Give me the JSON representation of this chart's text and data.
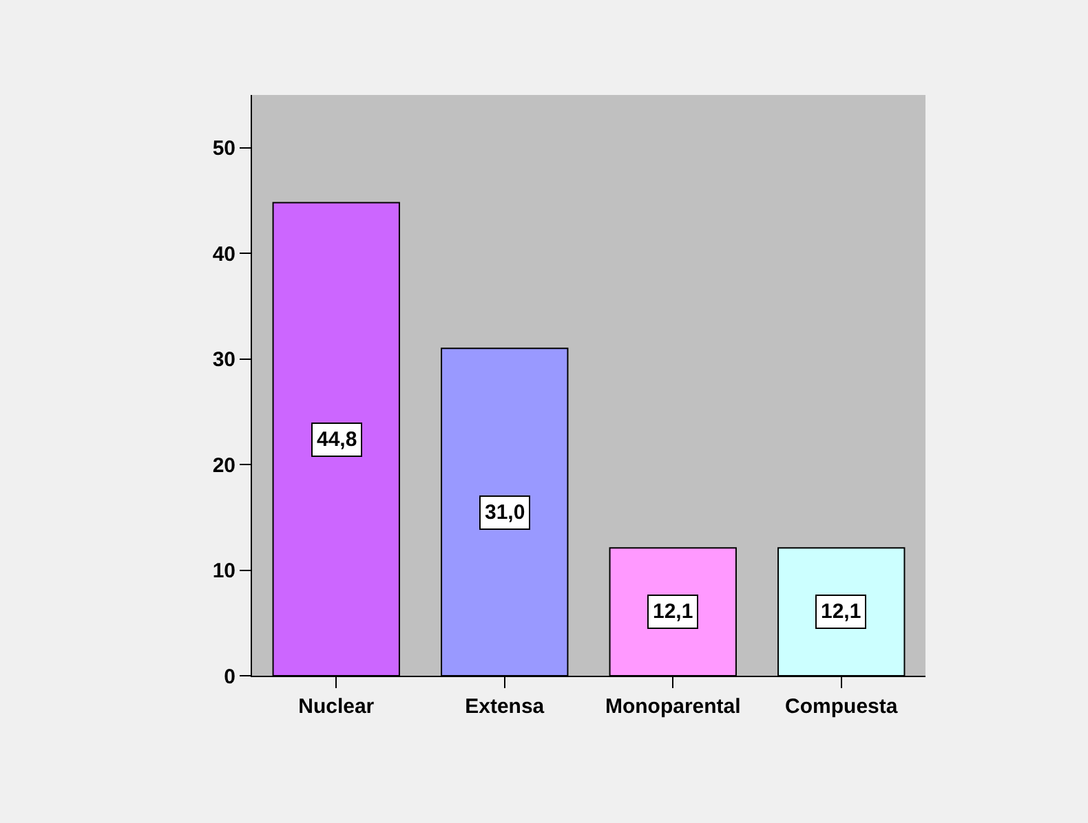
{
  "chart_data": {
    "type": "bar",
    "categories": [
      "Nuclear",
      "Extensa",
      "Monoparental",
      "Compuesta"
    ],
    "values": [
      44.8,
      31.0,
      12.1,
      12.1
    ],
    "colors": [
      "#cc66ff",
      "#9999ff",
      "#ff99ff",
      "#ccffff"
    ],
    "value_labels": [
      "44,8",
      "31,0",
      "12,1",
      "12,1"
    ],
    "ylim": [
      0,
      55
    ],
    "yticks": [
      0,
      10,
      20,
      30,
      40,
      50
    ]
  }
}
